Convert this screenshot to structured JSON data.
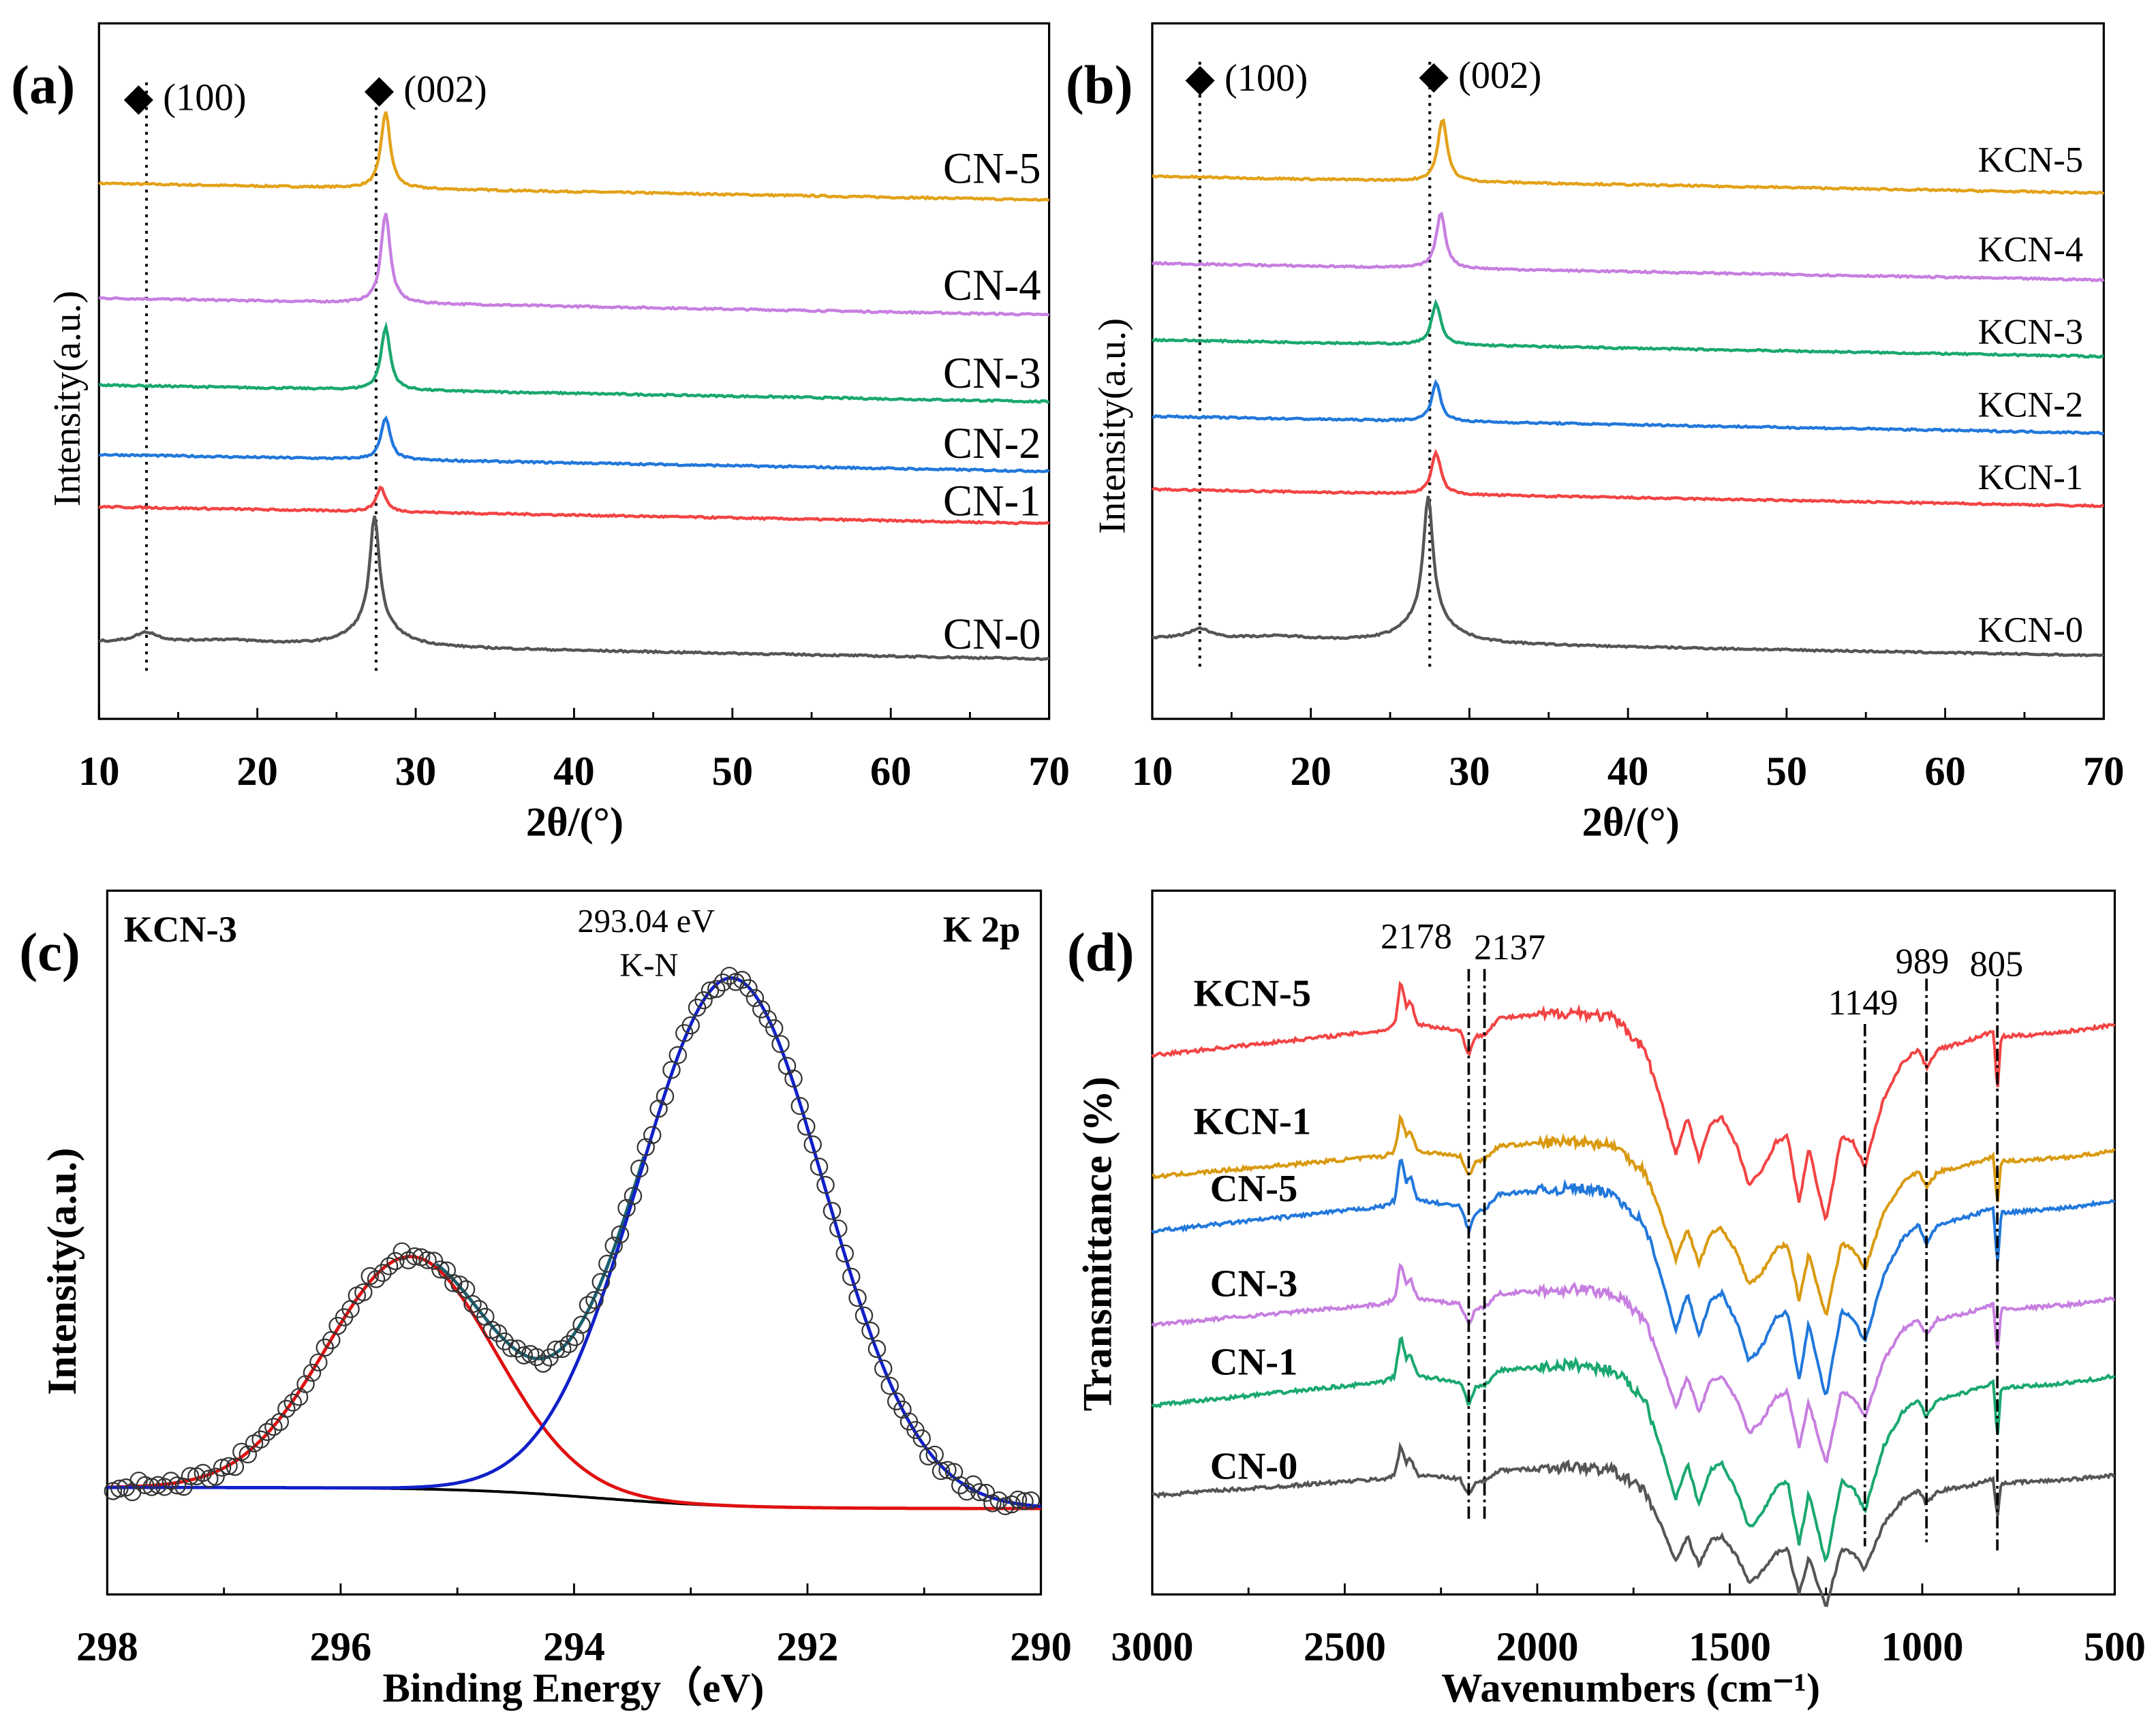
{
  "chart_data": [
    {
      "panel": "(a)",
      "type": "line",
      "xlabel": "2θ/(°)",
      "ylabel": "Intensity(a.u.)",
      "xlim": [
        10,
        70
      ],
      "xticks": [
        10,
        20,
        30,
        40,
        50,
        60,
        70
      ],
      "annotations": [
        "◆ (100)",
        "◆ (002)"
      ],
      "ref_lines_2theta": [
        13,
        27.5
      ],
      "series": [
        {
          "name": "CN-5",
          "color": "#e3a21a",
          "offset": 77,
          "peak_2theta": 28.1,
          "peak_height": 11,
          "bump_100": 0
        },
        {
          "name": "CN-4",
          "color": "#c77fe0",
          "offset": 60.5,
          "peak_2theta": 28.1,
          "peak_height": 13,
          "bump_100": 0
        },
        {
          "name": "CN-3",
          "color": "#1aa870",
          "offset": 48,
          "peak_2theta": 28.1,
          "peak_height": 9,
          "bump_100": 0
        },
        {
          "name": "CN-2",
          "color": "#2278db",
          "offset": 38,
          "peak_2theta": 28.1,
          "peak_height": 6,
          "bump_100": 0
        },
        {
          "name": "CN-1",
          "color": "#f24444",
          "offset": 30.5,
          "peak_2theta": 27.8,
          "peak_height": 3.5,
          "bump_100": 0
        },
        {
          "name": "CN-0",
          "color": "#555555",
          "offset": 11,
          "peak_2theta": 27.4,
          "peak_height": 15,
          "bump_100": 1.4
        }
      ]
    },
    {
      "panel": "(b)",
      "type": "line",
      "xlabel": "2θ/(°)",
      "ylabel": "Intensity(a.u.)",
      "xlim": [
        10,
        70
      ],
      "xticks": [
        10,
        20,
        30,
        40,
        50,
        60,
        70
      ],
      "annotations": [
        "◆ (100)",
        "◆ (002)"
      ],
      "ref_lines_2theta": [
        13,
        27.5
      ],
      "series": [
        {
          "name": "KCN-5",
          "color": "#e3a21a",
          "offset": 78,
          "peak_2theta": 28.3,
          "peak_height": 9,
          "bump_100": 0
        },
        {
          "name": "KCN-4",
          "color": "#c77fe0",
          "offset": 65.5,
          "peak_2theta": 28.2,
          "peak_height": 8,
          "bump_100": 0
        },
        {
          "name": "KCN-3",
          "color": "#1aa870",
          "offset": 54.5,
          "peak_2theta": 27.9,
          "peak_height": 6,
          "bump_100": 0
        },
        {
          "name": "KCN-2",
          "color": "#2278db",
          "offset": 43.5,
          "peak_2theta": 27.9,
          "peak_height": 5.5,
          "bump_100": 0
        },
        {
          "name": "KCN-1",
          "color": "#f24444",
          "offset": 33,
          "peak_2theta": 27.9,
          "peak_height": 6,
          "bump_100": 0
        },
        {
          "name": "KCN-0",
          "color": "#555555",
          "offset": 11.5,
          "peak_2theta": 27.4,
          "peak_height": 17,
          "bump_100": 1.4
        }
      ]
    },
    {
      "panel": "(c)",
      "type": "scatter",
      "title": "K 2p",
      "sample": "KCN-3",
      "xlabel": "Binding Energy（eV)",
      "ylabel": "Intensity(a.u.)",
      "xlim": [
        298,
        290
      ],
      "xticks": [
        298,
        296,
        294,
        292,
        290
      ],
      "annotation": {
        "value": "293.04 eV",
        "label": "K-N"
      },
      "baseline": [
        15.2,
        12.2
      ],
      "components": [
        {
          "name": "peak-1",
          "color": "#e01010",
          "center": 295.4,
          "sigma": 0.72,
          "height": 33
        },
        {
          "name": "peak-2",
          "color": "#1020c8",
          "center": 292.65,
          "sigma": 0.8,
          "height": 75
        }
      ],
      "envelope_color": "#1a6070"
    },
    {
      "panel": "(d)",
      "type": "line",
      "xlabel": "Wavenumbers (cm⁻¹)",
      "ylabel": "Transmittance (%)",
      "xlim": [
        3000,
        500
      ],
      "xticks": [
        3000,
        2500,
        2000,
        1500,
        1000,
        500
      ],
      "band_labels": [
        2178,
        2137,
        1149,
        989,
        805
      ],
      "shape": [
        [
          3000,
          25
        ],
        [
          2700,
          15
        ],
        [
          2400,
          5
        ],
        [
          2370,
          0
        ],
        [
          2355,
          -35
        ],
        [
          2340,
          -15
        ],
        [
          2330,
          -20
        ],
        [
          2310,
          0
        ],
        [
          2200,
          5
        ],
        [
          2178,
          25
        ],
        [
          2160,
          10
        ],
        [
          2137,
          8
        ],
        [
          2100,
          -5
        ],
        [
          1900,
          -10
        ],
        [
          1800,
          -5
        ],
        [
          1720,
          20
        ],
        [
          1680,
          60
        ],
        [
          1640,
          105
        ],
        [
          1610,
          75
        ],
        [
          1580,
          110
        ],
        [
          1550,
          80
        ],
        [
          1520,
          75
        ],
        [
          1480,
          100
        ],
        [
          1450,
          130
        ],
        [
          1420,
          120
        ],
        [
          1380,
          95
        ],
        [
          1350,
          90
        ],
        [
          1320,
          145
        ],
        [
          1295,
          100
        ],
        [
          1250,
          160
        ],
        [
          1210,
          90
        ],
        [
          1180,
          95
        ],
        [
          1149,
          115
        ],
        [
          1100,
          60
        ],
        [
          1050,
          30
        ],
        [
          1010,
          20
        ],
        [
          989,
          35
        ],
        [
          960,
          20
        ],
        [
          900,
          15
        ],
        [
          850,
          10
        ],
        [
          815,
          5
        ],
        [
          805,
          55
        ],
        [
          795,
          10
        ],
        [
          700,
          8
        ],
        [
          600,
          5
        ],
        [
          500,
          0
        ]
      ],
      "series": [
        {
          "name": "KCN-5",
          "color": "#f24444",
          "offset": 81,
          "scale": 0.9
        },
        {
          "name": "KCN-1",
          "color": "#d99a10",
          "offset": 63,
          "scale": 0.75
        },
        {
          "name": "CN-5",
          "color": "#2278db",
          "offset": 56,
          "scale": 0.9
        },
        {
          "name": "CN-3",
          "color": "#c77fe0",
          "offset": 42,
          "scale": 0.75
        },
        {
          "name": "CN-1",
          "color": "#1aa870",
          "offset": 31,
          "scale": 0.85
        },
        {
          "name": "CN-0",
          "color": "#555555",
          "offset": 17,
          "scale": 0.6
        }
      ]
    }
  ]
}
